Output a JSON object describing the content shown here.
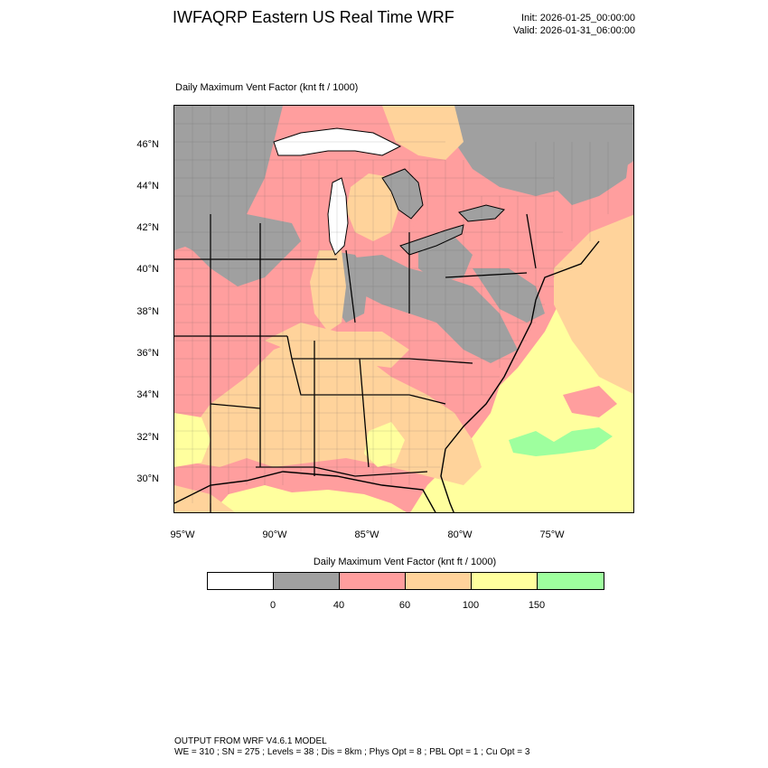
{
  "header": {
    "title": "IWFAQRP Eastern US Real Time WRF",
    "init": "Init: 2026-01-25_00:00:00",
    "valid": "Valid: 2026-01-31_06:00:00"
  },
  "map": {
    "subtitle": "Daily Maximum Vent Factor   (knt ft / 1000)",
    "lat_labels": [
      "46°N",
      "44°N",
      "42°N",
      "40°N",
      "38°N",
      "36°N",
      "34°N",
      "32°N",
      "30°N"
    ],
    "lon_labels": [
      "95°W",
      "90°W",
      "85°W",
      "80°W",
      "75°W"
    ],
    "colors": {
      "lt0": "#ffffff",
      "c0_40": "#a0a0a0",
      "c40_60": "#ff9e9e",
      "c60_100": "#ffd39b",
      "c100_150": "#ffff9e",
      "gt150": "#9eff9e",
      "water": "#ffffff"
    }
  },
  "colorbar": {
    "title": "Daily Maximum Vent Factor  (knt ft / 1000)",
    "ticks": [
      "0",
      "40",
      "60",
      "100",
      "150"
    ],
    "colors": [
      "#ffffff",
      "#a0a0a0",
      "#ff9e9e",
      "#ffd39b",
      "#ffff9e",
      "#9eff9e"
    ]
  },
  "footer": {
    "line1": "OUTPUT FROM WRF V4.6.1 MODEL",
    "line2": "WE = 310 ; SN = 275 ; Levels = 38 ; Dis = 8km ; Phys Opt = 8 ; PBL Opt = 1 ; Cu Opt = 3"
  }
}
